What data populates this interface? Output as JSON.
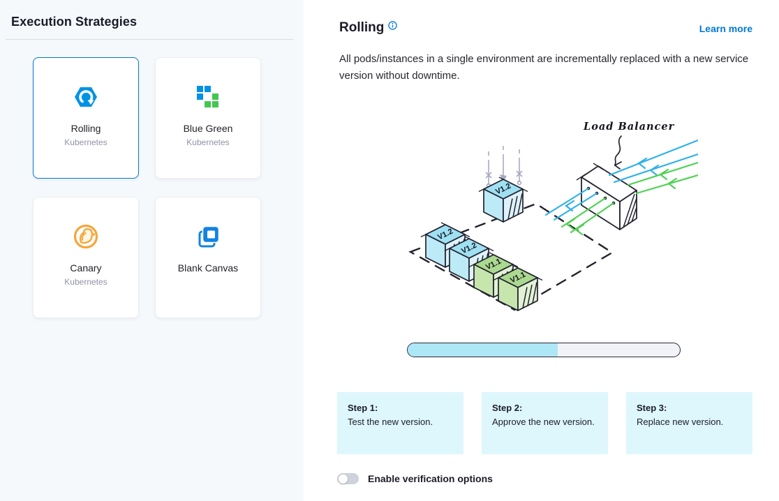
{
  "left_panel": {
    "title": "Execution Strategies",
    "strategies": [
      {
        "label": "Rolling",
        "sublabel": "Kubernetes",
        "icon": "rolling-update-icon",
        "selected": true
      },
      {
        "label": "Blue Green",
        "sublabel": "Kubernetes",
        "icon": "blue-green-icon",
        "selected": false
      },
      {
        "label": "Canary",
        "sublabel": "Kubernetes",
        "icon": "canary-icon",
        "selected": false
      },
      {
        "label": "Blank Canvas",
        "sublabel": "",
        "icon": "blank-canvas-icon",
        "selected": false
      }
    ]
  },
  "detail_panel": {
    "title": "Rolling",
    "learn_more_label": "Learn more",
    "description": "All pods/instances in a single environment are incrementally replaced with a new service version without downtime.",
    "diagram": {
      "load_balancer_label": "Load Balancer",
      "new_version_label": "V1.2",
      "old_version_label": "V1.1",
      "progress_percent": 55
    },
    "steps": [
      {
        "title": "Step 1:",
        "description": "Test the new version."
      },
      {
        "title": "Step 2:",
        "description": "Approve the new version."
      },
      {
        "title": "Step 3:",
        "description": "Replace new version."
      }
    ],
    "verification_toggle": {
      "label": "Enable verification options",
      "enabled": false
    }
  },
  "colors": {
    "accent_blue": "#0278d5",
    "icon_blue": "#0092e4",
    "icon_green": "#42c74f",
    "canary_orange": "#f5a63b",
    "diagram_blue": "#2fb1ea",
    "diagram_green": "#4fd153",
    "progress_fill": "#aee7f6",
    "step_bg": "#def7fc",
    "left_bg": "#f5f9fc"
  }
}
